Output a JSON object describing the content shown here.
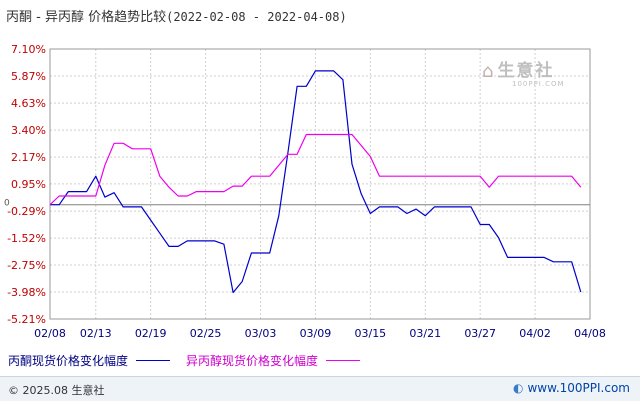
{
  "title": {
    "text": "丙酮 - 异丙醇 价格趋势比较",
    "date_range": "(2022-02-08 - 2022-04-08)"
  },
  "watermark": {
    "brand": "生意社",
    "sub": "100PPI.COM"
  },
  "footer": {
    "copyright": "© 2025.08 生意社",
    "website": "www.100PPI.com"
  },
  "colors": {
    "series_1": "#0000cc",
    "series_2": "#ee00ee",
    "y_labels": "#c00000",
    "x_labels": "#000080",
    "grid": "#d0d0d0",
    "zero_line": "#808080"
  },
  "chart_data": {
    "type": "line",
    "title": "丙酮 - 异丙醇 价格趋势比较",
    "x_ticks": [
      "02/08",
      "02/13",
      "02/19",
      "02/25",
      "03/03",
      "03/09",
      "03/15",
      "03/21",
      "03/27",
      "04/02",
      "04/08"
    ],
    "y_ticks": [
      "7.10%",
      "5.87%",
      "4.63%",
      "3.40%",
      "2.17%",
      "0.95%",
      "-0.29%",
      "-1.52%",
      "-2.75%",
      "-3.98%",
      "-5.21%"
    ],
    "ylim": [
      -5.21,
      7.1
    ],
    "x_range": [
      "2022-02-08",
      "2022-04-08"
    ],
    "grid": true,
    "legend_position": "bottom-left",
    "series": [
      {
        "name": "丙酮现货价格变化幅度",
        "points": [
          [
            "2022-02-08",
            0.0
          ],
          [
            "2022-02-09",
            0.0
          ],
          [
            "2022-02-10",
            0.6
          ],
          [
            "2022-02-11",
            0.6
          ],
          [
            "2022-02-12",
            0.6
          ],
          [
            "2022-02-13",
            1.3
          ],
          [
            "2022-02-14",
            0.35
          ],
          [
            "2022-02-15",
            0.55
          ],
          [
            "2022-02-16",
            -0.1
          ],
          [
            "2022-02-17",
            -0.1
          ],
          [
            "2022-02-18",
            -0.1
          ],
          [
            "2022-02-19",
            -0.7
          ],
          [
            "2022-02-20",
            -1.3
          ],
          [
            "2022-02-21",
            -1.9
          ],
          [
            "2022-02-22",
            -1.9
          ],
          [
            "2022-02-23",
            -1.65
          ],
          [
            "2022-02-24",
            -1.65
          ],
          [
            "2022-02-25",
            -1.65
          ],
          [
            "2022-02-26",
            -1.65
          ],
          [
            "2022-02-27",
            -1.8
          ],
          [
            "2022-02-28",
            -4.0
          ],
          [
            "2022-03-01",
            -3.5
          ],
          [
            "2022-03-02",
            -2.2
          ],
          [
            "2022-03-03",
            -2.2
          ],
          [
            "2022-03-04",
            -2.2
          ],
          [
            "2022-03-05",
            -0.5
          ],
          [
            "2022-03-06",
            2.4
          ],
          [
            "2022-03-07",
            5.4
          ],
          [
            "2022-03-08",
            5.4
          ],
          [
            "2022-03-09",
            6.1
          ],
          [
            "2022-03-10",
            6.1
          ],
          [
            "2022-03-11",
            6.1
          ],
          [
            "2022-03-12",
            5.7
          ],
          [
            "2022-03-13",
            1.85
          ],
          [
            "2022-03-14",
            0.5
          ],
          [
            "2022-03-15",
            -0.4
          ],
          [
            "2022-03-16",
            -0.1
          ],
          [
            "2022-03-17",
            -0.1
          ],
          [
            "2022-03-18",
            -0.1
          ],
          [
            "2022-03-19",
            -0.4
          ],
          [
            "2022-03-20",
            -0.2
          ],
          [
            "2022-03-21",
            -0.5
          ],
          [
            "2022-03-22",
            -0.1
          ],
          [
            "2022-03-23",
            -0.1
          ],
          [
            "2022-03-24",
            -0.1
          ],
          [
            "2022-03-25",
            -0.1
          ],
          [
            "2022-03-26",
            -0.1
          ],
          [
            "2022-03-27",
            -0.9
          ],
          [
            "2022-03-28",
            -0.9
          ],
          [
            "2022-03-29",
            -1.5
          ],
          [
            "2022-03-30",
            -2.4
          ],
          [
            "2022-03-31",
            -2.4
          ],
          [
            "2022-04-01",
            -2.4
          ],
          [
            "2022-04-02",
            -2.4
          ],
          [
            "2022-04-03",
            -2.4
          ],
          [
            "2022-04-04",
            -2.6
          ],
          [
            "2022-04-05",
            -2.6
          ],
          [
            "2022-04-06",
            -2.6
          ],
          [
            "2022-04-07",
            -3.98
          ]
        ]
      },
      {
        "name": "异丙醇现货价格变化幅度",
        "points": [
          [
            "2022-02-08",
            0.0
          ],
          [
            "2022-02-09",
            0.4
          ],
          [
            "2022-02-10",
            0.4
          ],
          [
            "2022-02-11",
            0.4
          ],
          [
            "2022-02-12",
            0.4
          ],
          [
            "2022-02-13",
            0.4
          ],
          [
            "2022-02-14",
            1.8
          ],
          [
            "2022-02-15",
            2.8
          ],
          [
            "2022-02-16",
            2.8
          ],
          [
            "2022-02-17",
            2.55
          ],
          [
            "2022-02-18",
            2.55
          ],
          [
            "2022-02-19",
            2.55
          ],
          [
            "2022-02-20",
            1.3
          ],
          [
            "2022-02-21",
            0.8
          ],
          [
            "2022-02-22",
            0.4
          ],
          [
            "2022-02-23",
            0.4
          ],
          [
            "2022-02-24",
            0.6
          ],
          [
            "2022-02-25",
            0.6
          ],
          [
            "2022-02-26",
            0.6
          ],
          [
            "2022-02-27",
            0.6
          ],
          [
            "2022-02-28",
            0.85
          ],
          [
            "2022-03-01",
            0.85
          ],
          [
            "2022-03-02",
            1.3
          ],
          [
            "2022-03-03",
            1.3
          ],
          [
            "2022-03-04",
            1.3
          ],
          [
            "2022-03-05",
            1.8
          ],
          [
            "2022-03-06",
            2.3
          ],
          [
            "2022-03-07",
            2.3
          ],
          [
            "2022-03-08",
            3.2
          ],
          [
            "2022-03-09",
            3.2
          ],
          [
            "2022-03-10",
            3.2
          ],
          [
            "2022-03-11",
            3.2
          ],
          [
            "2022-03-12",
            3.2
          ],
          [
            "2022-03-13",
            3.2
          ],
          [
            "2022-03-14",
            2.7
          ],
          [
            "2022-03-15",
            2.2
          ],
          [
            "2022-03-16",
            1.3
          ],
          [
            "2022-03-17",
            1.3
          ],
          [
            "2022-03-18",
            1.3
          ],
          [
            "2022-03-19",
            1.3
          ],
          [
            "2022-03-20",
            1.3
          ],
          [
            "2022-03-21",
            1.3
          ],
          [
            "2022-03-22",
            1.3
          ],
          [
            "2022-03-23",
            1.3
          ],
          [
            "2022-03-24",
            1.3
          ],
          [
            "2022-03-25",
            1.3
          ],
          [
            "2022-03-26",
            1.3
          ],
          [
            "2022-03-27",
            1.3
          ],
          [
            "2022-03-28",
            0.8
          ],
          [
            "2022-03-29",
            1.3
          ],
          [
            "2022-03-30",
            1.3
          ],
          [
            "2022-03-31",
            1.3
          ],
          [
            "2022-04-01",
            1.3
          ],
          [
            "2022-04-02",
            1.3
          ],
          [
            "2022-04-03",
            1.3
          ],
          [
            "2022-04-04",
            1.3
          ],
          [
            "2022-04-05",
            1.3
          ],
          [
            "2022-04-06",
            1.3
          ],
          [
            "2022-04-07",
            0.8
          ]
        ]
      }
    ]
  }
}
